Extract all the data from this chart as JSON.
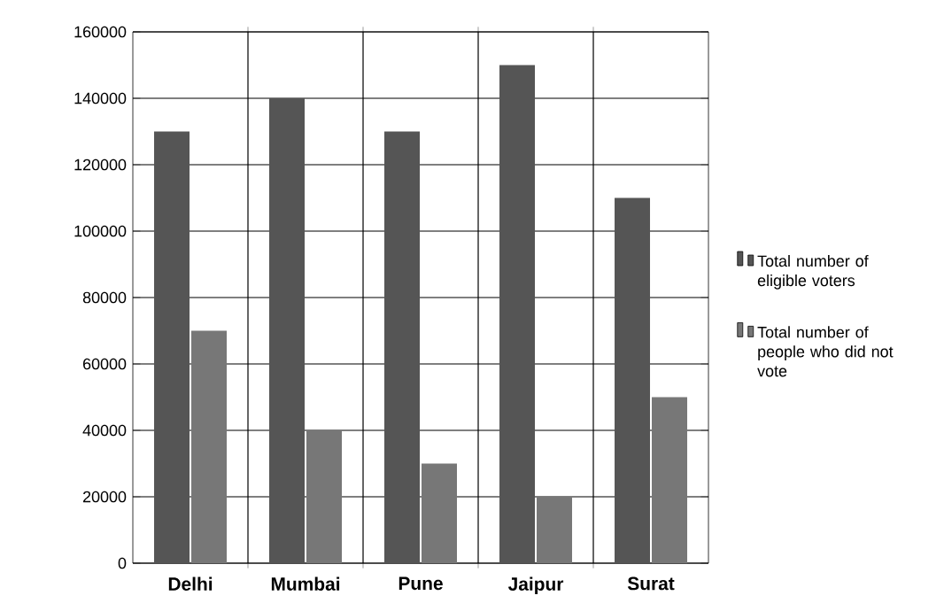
{
  "chart_data": {
    "type": "bar",
    "categories": [
      "Delhi",
      "Mumbai",
      "Pune",
      "Jaipur",
      "Surat"
    ],
    "series": [
      {
        "name": "Total number of eligible voters",
        "color": "#555555",
        "values": [
          130000,
          140000,
          130000,
          150000,
          110000
        ]
      },
      {
        "name": "Total number of people who did not vote",
        "color": "#777777",
        "values": [
          70000,
          40000,
          30000,
          20000,
          50000
        ]
      }
    ],
    "ylim": [
      0,
      160000
    ],
    "yticks": [
      0,
      20000,
      40000,
      60000,
      80000,
      100000,
      120000,
      140000,
      160000
    ],
    "grid": true,
    "legend": "right"
  }
}
